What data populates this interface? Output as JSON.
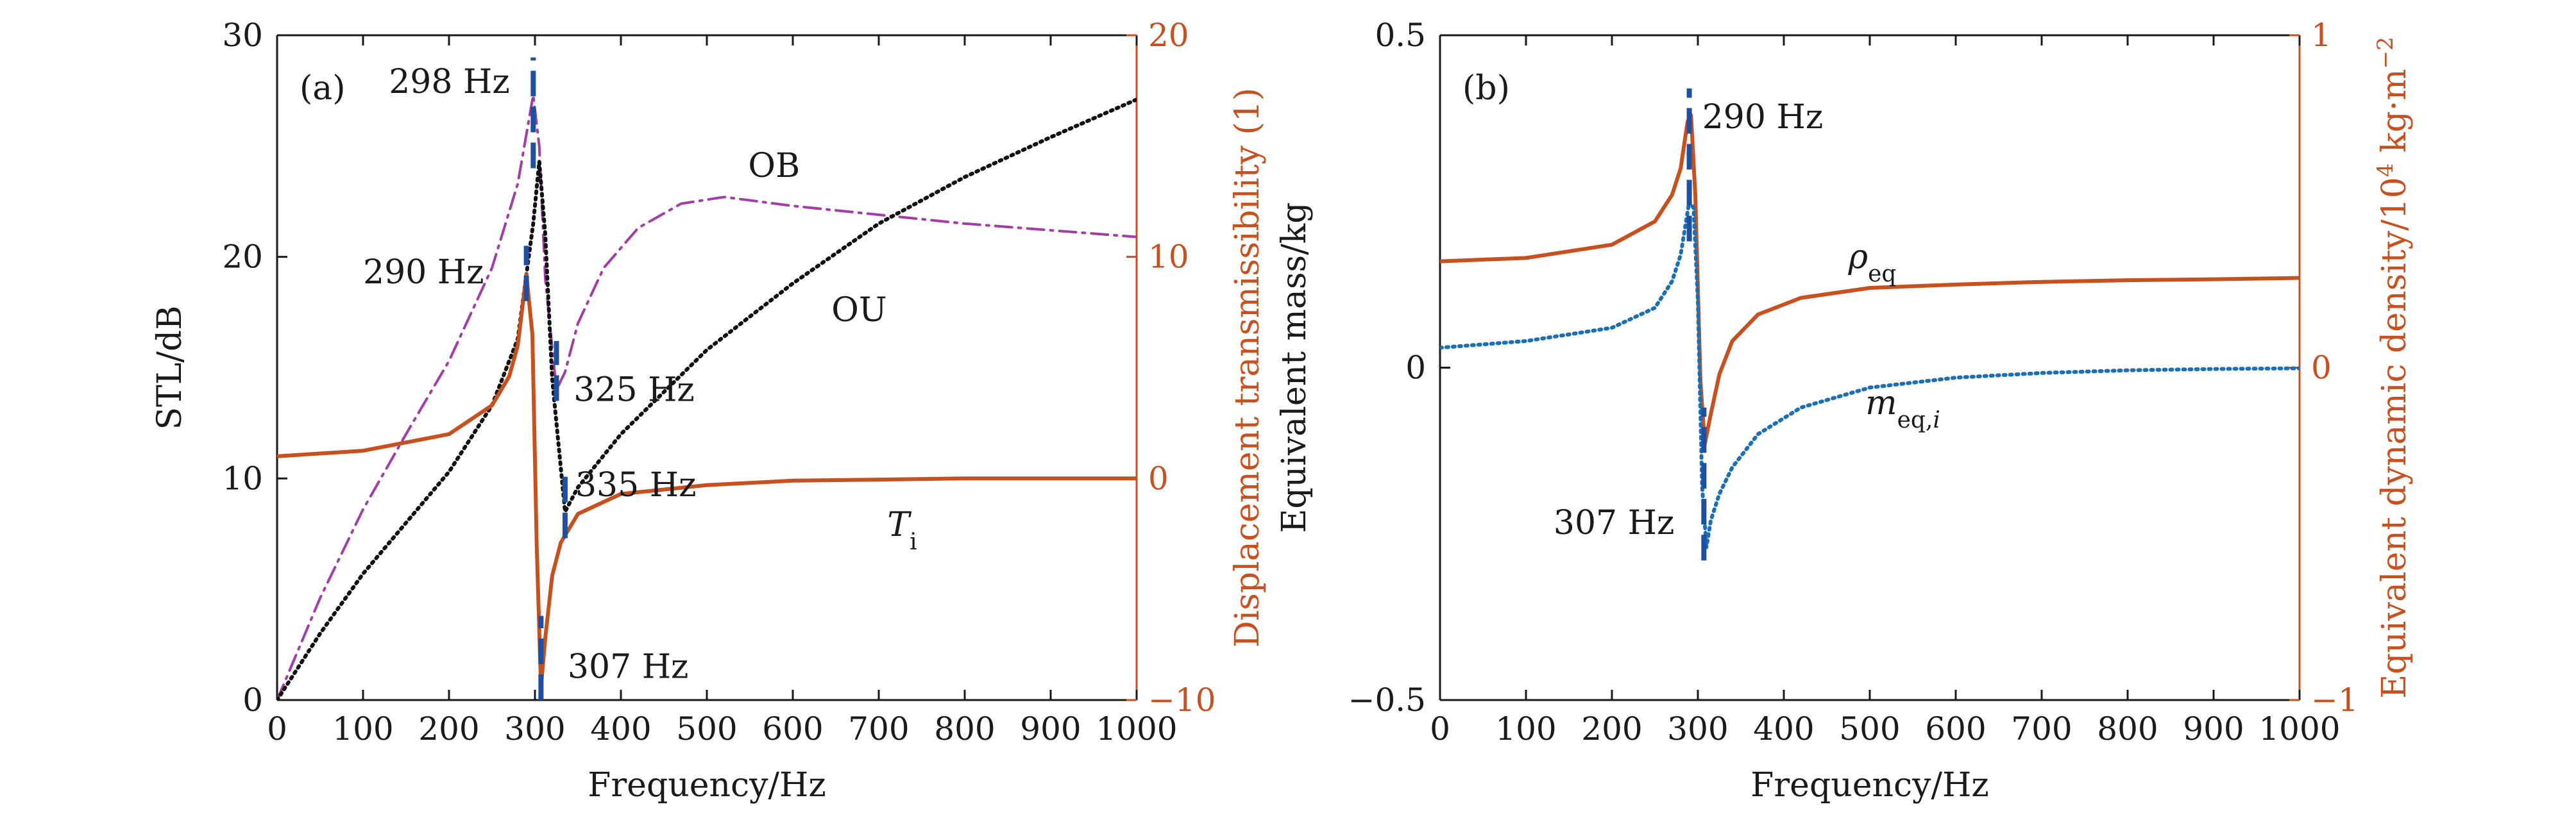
{
  "chart_data": [
    {
      "type": "line",
      "panel_label": "(a)",
      "xlabel": "Frequency/Hz",
      "ylabel": "STL/dB",
      "ylabel_right": "Displacement transmissibility (1)",
      "xlim": [
        0,
        1000
      ],
      "ylim": [
        0,
        30
      ],
      "ylim_right": [
        -10,
        20
      ],
      "x_ticks": [
        "0",
        "100",
        "200",
        "300",
        "400",
        "500",
        "600",
        "700",
        "800",
        "900",
        "1000"
      ],
      "y_ticks": [
        "0",
        "10",
        "20",
        "30"
      ],
      "y_ticks_right": [
        "−10",
        "0",
        "10",
        "20"
      ],
      "colors": {
        "OB": "#a23ca6",
        "OU": "#111111",
        "Ti": "#c8501e",
        "markers": "#1f4fa0",
        "right_axis": "#c8501e"
      },
      "series": [
        {
          "name": "OB",
          "style": "dash-dot",
          "axis": "left",
          "x": [
            0,
            50,
            100,
            150,
            200,
            250,
            280,
            298,
            305,
            312,
            325,
            335,
            350,
            380,
            420,
            470,
            520,
            600,
            700,
            800,
            900,
            1000
          ],
          "y": [
            0,
            4.6,
            8.6,
            12.0,
            15.3,
            19.5,
            23.3,
            27.3,
            25.0,
            19.0,
            14.0,
            14.8,
            17.0,
            19.5,
            21.3,
            22.4,
            22.7,
            22.3,
            21.9,
            21.5,
            21.2,
            20.9
          ]
        },
        {
          "name": "OU",
          "style": "dotted",
          "axis": "left",
          "x": [
            0,
            50,
            100,
            150,
            200,
            250,
            280,
            298,
            305,
            312,
            320,
            335,
            350,
            400,
            500,
            600,
            700,
            800,
            900,
            1000
          ],
          "y": [
            0,
            3.0,
            5.7,
            8.0,
            10.3,
            13.3,
            16.3,
            21.5,
            24.3,
            21.0,
            14.5,
            8.5,
            9.6,
            12.0,
            15.8,
            18.8,
            21.5,
            23.6,
            25.4,
            27.1
          ]
        },
        {
          "name": "Ti",
          "label": "T",
          "label_sub": "i",
          "style": "solid",
          "axis": "right",
          "x": [
            0,
            100,
            200,
            250,
            270,
            280,
            290,
            297,
            302,
            307,
            312,
            320,
            330,
            350,
            400,
            500,
            600,
            700,
            800,
            900,
            1000
          ],
          "y": [
            1.0,
            1.25,
            2.0,
            3.3,
            4.6,
            6.0,
            9.2,
            6.5,
            -3.0,
            -9.4,
            -7.2,
            -4.4,
            -2.9,
            -1.6,
            -0.7,
            -0.3,
            -0.1,
            -0.05,
            0.0,
            0.0,
            0.0
          ]
        }
      ],
      "markers": [
        {
          "x": 298,
          "y_from": 24.0,
          "y_to": 29.0
        },
        {
          "x": 290,
          "y_from": 18.0,
          "y_to": 20.5
        },
        {
          "x": 325,
          "y_from": 13.5,
          "y_to": 16.2
        },
        {
          "x": 335,
          "y_from": 7.3,
          "y_to": 10.5
        },
        {
          "x": 307,
          "y_from": 0,
          "y_to": 3.8
        }
      ],
      "annotations": [
        {
          "text": "298 Hz",
          "x": 130,
          "y": 27.4
        },
        {
          "text": "290 Hz",
          "x": 100,
          "y": 18.8
        },
        {
          "text": "325 Hz",
          "x": 345,
          "y": 13.5
        },
        {
          "text": "335 Hz",
          "x": 347,
          "y": 9.2
        },
        {
          "text": "307 Hz",
          "x": 338,
          "y": 1.0
        },
        {
          "text": "OB",
          "x": 548,
          "y": 23.6
        },
        {
          "text": "OU",
          "x": 645,
          "y": 17.1
        }
      ],
      "ti_label_pos": {
        "x": 710,
        "y": 7.4
      }
    },
    {
      "type": "line",
      "panel_label": "(b)",
      "xlabel": "Frequency/Hz",
      "ylabel": "Equivalent mass/kg",
      "ylabel_right": "Equivalent dynamic density/10",
      "ylabel_right_sup": "4",
      "ylabel_right_units": " kg·m",
      "ylabel_right_units_sup": "−2",
      "xlim": [
        0,
        1000
      ],
      "ylim": [
        -0.5,
        0.5
      ],
      "ylim_right": [
        -1,
        1
      ],
      "x_ticks": [
        "0",
        "100",
        "200",
        "300",
        "400",
        "500",
        "600",
        "700",
        "800",
        "900",
        "1000"
      ],
      "y_ticks": [
        "−0.5",
        "0",
        "0.5"
      ],
      "y_ticks_right": [
        "−1",
        "0",
        "1"
      ],
      "colors": {
        "rho_eq": "#c8501e",
        "m_eq": "#1a6fb5",
        "markers": "#1f4fa0",
        "right_axis": "#c8501e"
      },
      "series": [
        {
          "name": "rho_eq",
          "label": "ρ",
          "label_sub": "eq",
          "style": "solid",
          "axis": "right",
          "x": [
            0,
            100,
            200,
            250,
            270,
            280,
            288,
            292,
            297,
            303,
            308,
            315,
            325,
            340,
            370,
            420,
            500,
            600,
            700,
            800,
            900,
            1000
          ],
          "y": [
            0.32,
            0.33,
            0.37,
            0.44,
            0.52,
            0.6,
            0.74,
            0.76,
            0.52,
            -0.04,
            -0.23,
            -0.14,
            -0.02,
            0.08,
            0.16,
            0.21,
            0.24,
            0.25,
            0.258,
            0.263,
            0.266,
            0.27
          ]
        },
        {
          "name": "m_eq_i",
          "label": "m",
          "label_sub": "eq,",
          "label_sub_italic": "i",
          "style": "dotted",
          "axis": "left",
          "x": [
            0,
            100,
            200,
            250,
            270,
            280,
            290,
            295,
            300,
            305,
            310,
            315,
            325,
            340,
            370,
            420,
            500,
            600,
            700,
            800,
            900,
            1000
          ],
          "y": [
            0.03,
            0.04,
            0.06,
            0.09,
            0.13,
            0.17,
            0.25,
            0.24,
            0.1,
            -0.18,
            -0.27,
            -0.23,
            -0.19,
            -0.15,
            -0.1,
            -0.06,
            -0.03,
            -0.015,
            -0.008,
            -0.004,
            -0.002,
            -0.001
          ]
        }
      ],
      "markers": [
        {
          "x": 290,
          "y_from": 0.19,
          "y_to": 0.42
        },
        {
          "x": 307,
          "y_from": -0.29,
          "y_to": -0.06
        }
      ],
      "annotations": [
        {
          "text": "290 Hz",
          "x": 305,
          "y": 0.36
        },
        {
          "text": "307 Hz",
          "x": 132,
          "y": -0.25
        }
      ],
      "rho_label_pos": {
        "x": 475,
        "y": 0.15
      },
      "m_label_pos": {
        "x": 495,
        "y": -0.07
      }
    }
  ]
}
